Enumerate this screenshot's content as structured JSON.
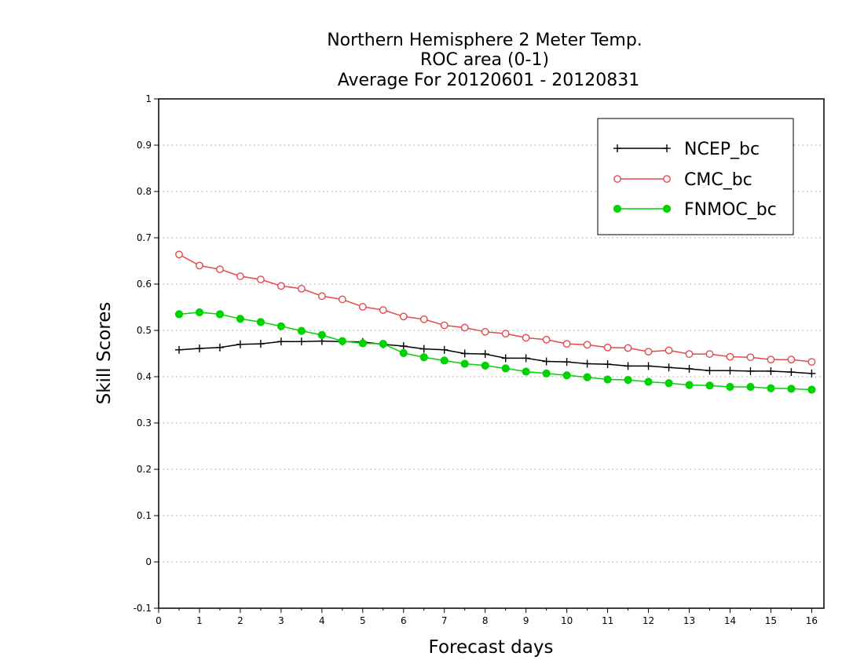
{
  "chart_data": {
    "type": "line",
    "title_lines": [
      "Northern Hemisphere 2 Meter Temp.",
      "ROC area (0-1)",
      "Average For 20120601 - 20120831"
    ],
    "xlabel": "Forecast days",
    "ylabel": "Skill Scores",
    "xlim": [
      0,
      16.3
    ],
    "ylim": [
      -0.1,
      1
    ],
    "x_ticks": [
      0,
      1,
      2,
      3,
      4,
      5,
      6,
      7,
      8,
      9,
      10,
      11,
      12,
      13,
      14,
      15,
      16
    ],
    "x_tick_labels": [
      "0",
      "1",
      "2",
      "3",
      "4",
      "5",
      "6",
      "7",
      "8",
      "9",
      "10",
      "11",
      "12",
      "13",
      "14",
      "15",
      "16"
    ],
    "y_ticks": [
      -0.1,
      0,
      0.1,
      0.2,
      0.3,
      0.4,
      0.5,
      0.6,
      0.7,
      0.8,
      0.9,
      1
    ],
    "y_tick_labels": [
      "-0.1",
      "0",
      "0.1",
      "0.2",
      "0.3",
      "0.4",
      "0.5",
      "0.6",
      "0.7",
      "0.8",
      "0.9",
      "1"
    ],
    "grid": "horizontal dotted",
    "legend_position": "top-right",
    "x": [
      0.5,
      1,
      1.5,
      2,
      2.5,
      3,
      3.5,
      4,
      4.5,
      5,
      5.5,
      6,
      6.5,
      7,
      7.5,
      8,
      8.5,
      9,
      9.5,
      10,
      10.5,
      11,
      11.5,
      12,
      12.5,
      13,
      13.5,
      14,
      14.5,
      15,
      15.5,
      16
    ],
    "series": [
      {
        "name": "NCEP_bc",
        "color": "#000000",
        "marker": "plus",
        "values": [
          0.458,
          0.461,
          0.463,
          0.47,
          0.471,
          0.476,
          0.476,
          0.477,
          0.476,
          0.475,
          0.47,
          0.466,
          0.46,
          0.458,
          0.45,
          0.449,
          0.44,
          0.44,
          0.433,
          0.432,
          0.428,
          0.427,
          0.423,
          0.423,
          0.42,
          0.417,
          0.413,
          0.413,
          0.412,
          0.412,
          0.41,
          0.407
        ]
      },
      {
        "name": "CMC_bc",
        "color": "#e8474a",
        "marker": "open-circle",
        "values": [
          0.664,
          0.64,
          0.632,
          0.617,
          0.61,
          0.596,
          0.59,
          0.574,
          0.567,
          0.551,
          0.544,
          0.53,
          0.524,
          0.511,
          0.506,
          0.497,
          0.493,
          0.484,
          0.48,
          0.471,
          0.469,
          0.463,
          0.462,
          0.454,
          0.457,
          0.449,
          0.449,
          0.443,
          0.442,
          0.437,
          0.437,
          0.432
        ]
      },
      {
        "name": "FNMOC_bc",
        "color": "#00d400",
        "marker": "filled-circle",
        "values": [
          0.535,
          0.539,
          0.535,
          0.525,
          0.518,
          0.509,
          0.499,
          0.49,
          0.477,
          0.472,
          0.471,
          0.451,
          0.442,
          0.435,
          0.428,
          0.424,
          0.418,
          0.411,
          0.407,
          0.403,
          0.399,
          0.394,
          0.393,
          0.389,
          0.386,
          0.382,
          0.381,
          0.378,
          0.378,
          0.375,
          0.374,
          0.372
        ]
      }
    ]
  }
}
